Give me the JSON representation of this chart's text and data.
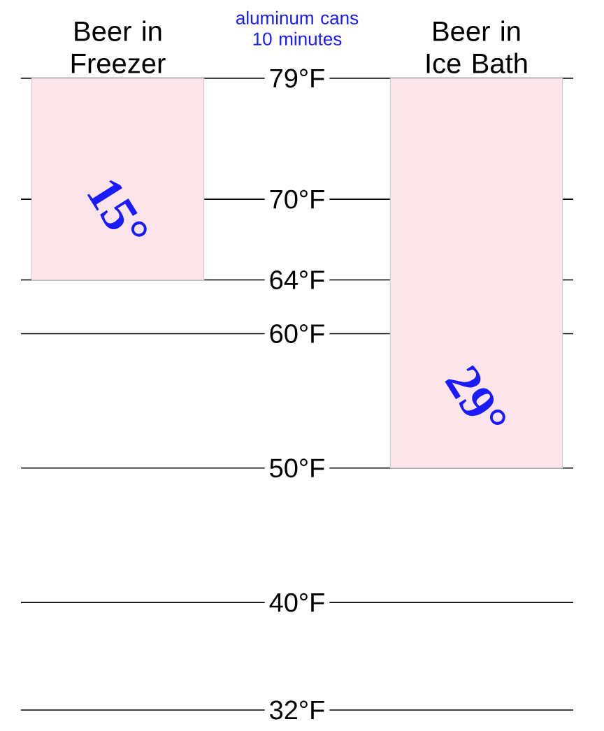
{
  "chart_data": {
    "type": "bar",
    "categories": [
      "Beer in Freezer",
      "Beer in Ice Bath"
    ],
    "base": [
      79,
      79
    ],
    "values": [
      -15,
      -29
    ],
    "value_labels": [
      "15°",
      "29°"
    ],
    "color": "#fbe4ea",
    "ylim": [
      32,
      79
    ],
    "yticks": [
      {
        "value": 32,
        "label": "32°F"
      },
      {
        "value": 40,
        "label": "40°F"
      },
      {
        "value": 50,
        "label": "50°F"
      },
      {
        "value": 60,
        "label": "60°F"
      },
      {
        "value": 64,
        "label": "64°F"
      },
      {
        "value": 70,
        "label": "70°F"
      },
      {
        "value": 79,
        "label": "79°F"
      }
    ],
    "grid": "y",
    "annotations": [
      "aluminum cans 10 minutes"
    ]
  }
}
